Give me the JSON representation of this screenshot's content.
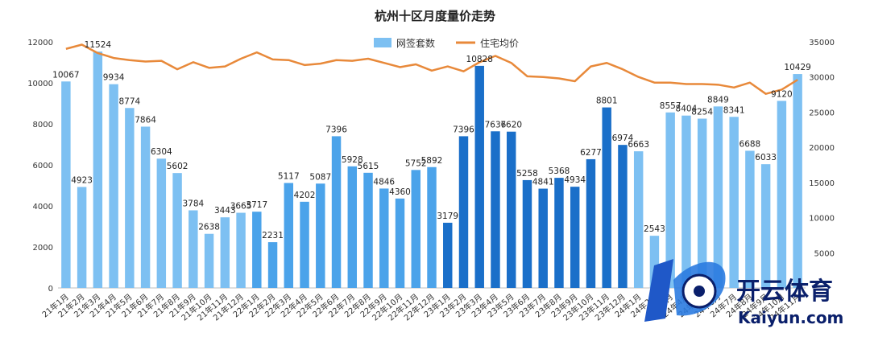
{
  "chart_data": {
    "type": "bar+line",
    "title": "杭州十区月度量价走势",
    "legend": [
      {
        "name": "网签套数",
        "type": "bar",
        "color": "#7dc0f2"
      },
      {
        "name": "住宅均价",
        "type": "line",
        "color": "#e8893a"
      }
    ],
    "legend_position": "top-center",
    "categories": [
      "21年1月",
      "21年2月",
      "21年3月",
      "21年4月",
      "21年5月",
      "21年6月",
      "21年7月",
      "21年8月",
      "21年9月",
      "21年10月",
      "21年11月",
      "21年12月",
      "22年1月",
      "22年2月",
      "22年3月",
      "22年4月",
      "22年5月",
      "22年6月",
      "22年7月",
      "22年8月",
      "22年9月",
      "22年10月",
      "22年11月",
      "22年12月",
      "23年1月",
      "23年2月",
      "23年3月",
      "23年4月",
      "23年5月",
      "23年6月",
      "23年7月",
      "23年8月",
      "23年9月",
      "23年10月",
      "23年11月",
      "23年12月",
      "24年1月",
      "24年2月",
      "24年3月",
      "24年4月",
      "24年5月",
      "24年6月",
      "24年7月",
      "24年8月",
      "24年9月",
      "24年10月",
      "24年11月"
    ],
    "bar_series": {
      "name": "网签套数",
      "values": [
        10067,
        4923,
        11524,
        9934,
        8774,
        7864,
        6304,
        5602,
        3784,
        2638,
        3443,
        3665,
        3717,
        2231,
        5117,
        4202,
        5087,
        7396,
        5928,
        5615,
        4846,
        4360,
        5752,
        5892,
        3179,
        7396,
        10828,
        7636,
        7620,
        5258,
        4841,
        5368,
        4934,
        6277,
        8801,
        6974,
        6663,
        2543,
        8557,
        8404,
        8254,
        8849,
        8341,
        6688,
        6033,
        9120,
        10429
      ],
      "bar_colors": [
        "#7dc0f2",
        "#7dc0f2",
        "#7dc0f2",
        "#7dc0f2",
        "#7dc0f2",
        "#7dc0f2",
        "#7dc0f2",
        "#7dc0f2",
        "#7dc0f2",
        "#7dc0f2",
        "#7dc0f2",
        "#7dc0f2",
        "#4ba3ea",
        "#4ba3ea",
        "#4ba3ea",
        "#4ba3ea",
        "#4ba3ea",
        "#4ba3ea",
        "#4ba3ea",
        "#4ba3ea",
        "#4ba3ea",
        "#4ba3ea",
        "#4ba3ea",
        "#4ba3ea",
        "#1a6fc9",
        "#1a6fc9",
        "#1a6fc9",
        "#1a6fc9",
        "#1a6fc9",
        "#1a6fc9",
        "#1a6fc9",
        "#1a6fc9",
        "#1a6fc9",
        "#1a6fc9",
        "#1a6fc9",
        "#1a6fc9",
        "#7dc0f2",
        "#7dc0f2",
        "#7dc0f2",
        "#7dc0f2",
        "#7dc0f2",
        "#7dc0f2",
        "#7dc0f2",
        "#7dc0f2",
        "#7dc0f2",
        "#7dc0f2",
        "#7dc0f2"
      ]
    },
    "line_series": {
      "name": "住宅均价",
      "values": [
        34000,
        34600,
        33400,
        32700,
        32400,
        32200,
        32300,
        31100,
        32100,
        31300,
        31500,
        32600,
        33500,
        32500,
        32400,
        31700,
        31900,
        32400,
        32300,
        32600,
        32000,
        31400,
        31800,
        30900,
        31500,
        30800,
        32100,
        33000,
        32000,
        30100,
        30000,
        29800,
        29400,
        31500,
        32000,
        31100,
        30000,
        29200,
        29200,
        29000,
        29000,
        28900,
        28500,
        29200,
        27600,
        28200,
        29600
      ]
    },
    "y_left": {
      "min": 0,
      "max": 12000,
      "ticks": [
        "0",
        "2000",
        "4000",
        "6000",
        "8000",
        "10000",
        "12000"
      ]
    },
    "y_right": {
      "min": 0,
      "max": 35000,
      "ticks": [
        "5000",
        "10000",
        "15000",
        "20000",
        "25000",
        "30000",
        "35000"
      ]
    },
    "grid": false
  },
  "watermark": {
    "text_cn": "开云体育",
    "text_en": "Kaiyun.com"
  }
}
